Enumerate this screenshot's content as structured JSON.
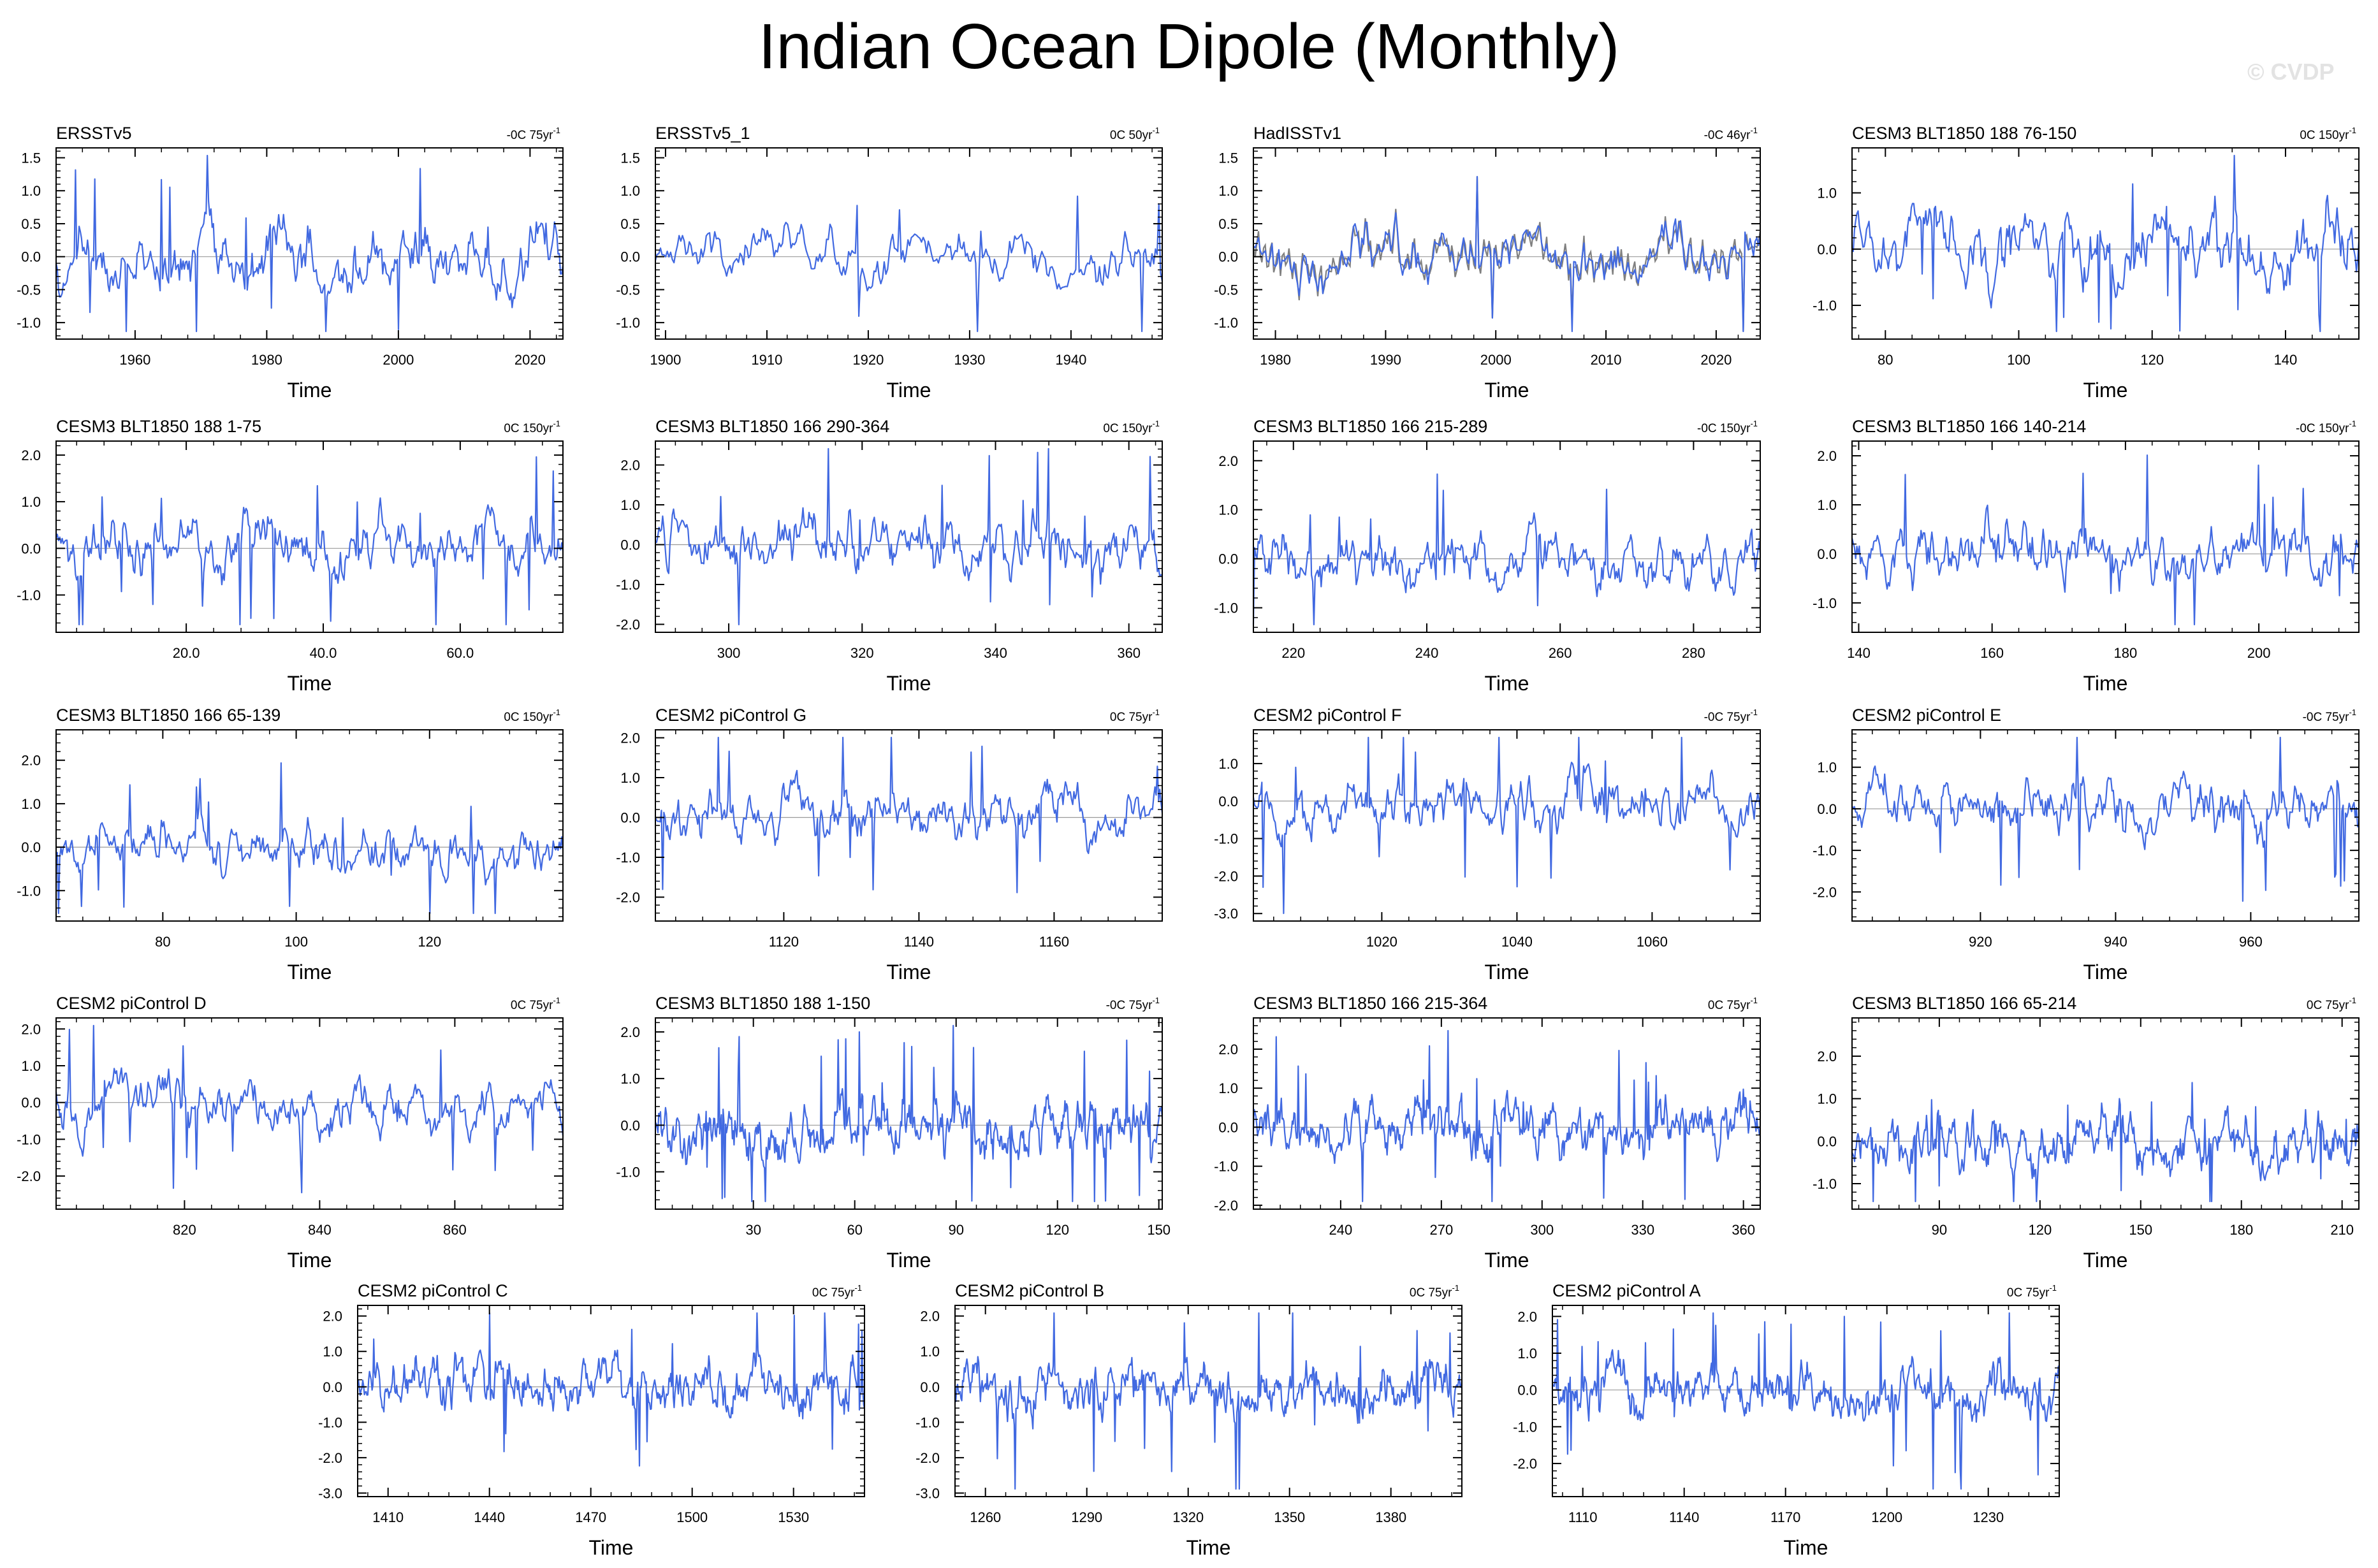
{
  "title": "Indian Ocean Dipole (Monthly)",
  "watermark": "© CVDP",
  "colors": {
    "series": "#4169e1",
    "obs_overlay": "#808080",
    "axis": "#000000",
    "zero_line": "#999999"
  },
  "chart_data": [
    {
      "type": "line",
      "title": "ERSSTv5",
      "trend": "-0C 75yr",
      "xlabel": "Time",
      "xlim": [
        1948,
        2025
      ],
      "xticks": [
        1960,
        1980,
        2000,
        2020
      ],
      "xtick_labels": [
        "1960",
        "1980",
        "2000",
        "2020"
      ],
      "ylim": [
        -1.25,
        1.65
      ],
      "yticks": [
        -1.0,
        -0.5,
        0.0,
        0.5,
        1.0,
        1.5
      ],
      "ytick_labels": [
        "-1.0",
        "-0.5",
        "0.0",
        "0.5",
        "1.0",
        "1.5"
      ],
      "seed": 1,
      "n": 420,
      "amp": 0.42,
      "overlay": false
    },
    {
      "type": "line",
      "title": "ERSSTv5_1",
      "trend": "0C 50yr",
      "xlabel": "Time",
      "xlim": [
        1899,
        1949
      ],
      "xticks": [
        1900,
        1910,
        1920,
        1930,
        1940
      ],
      "xtick_labels": [
        "1900",
        "1910",
        "1920",
        "1930",
        "1940"
      ],
      "ylim": [
        -1.25,
        1.65
      ],
      "yticks": [
        -1.0,
        -0.5,
        0.0,
        0.5,
        1.0,
        1.5
      ],
      "ytick_labels": [
        "-1.0",
        "-0.5",
        "0.0",
        "0.5",
        "1.0",
        "1.5"
      ],
      "seed": 2,
      "n": 300,
      "amp": 0.33,
      "overlay": false
    },
    {
      "type": "line",
      "title": "HadISSTv1",
      "trend": "-0C 46yr",
      "xlabel": "Time",
      "xlim": [
        1978,
        2024
      ],
      "xticks": [
        1980,
        1990,
        2000,
        2010,
        2020
      ],
      "xtick_labels": [
        "1980",
        "1990",
        "2000",
        "2010",
        "2020"
      ],
      "ylim": [
        -1.25,
        1.65
      ],
      "yticks": [
        -1.0,
        -0.5,
        0.0,
        0.5,
        1.0,
        1.5
      ],
      "ytick_labels": [
        "-1.0",
        "-0.5",
        "0.0",
        "0.5",
        "1.0",
        "1.5"
      ],
      "seed": 3,
      "n": 300,
      "amp": 0.38,
      "overlay": true
    },
    {
      "type": "line",
      "title": "CESM3 BLT1850 188 76-150",
      "trend": "0C 150yr",
      "xlabel": "Time",
      "xlim": [
        75,
        151
      ],
      "xticks": [
        80,
        100,
        120,
        140
      ],
      "xtick_labels": [
        "80",
        "100",
        "120",
        "140"
      ],
      "ylim": [
        -1.6,
        1.8
      ],
      "yticks": [
        -1.0,
        0.0,
        1.0
      ],
      "ytick_labels": [
        "-1.0",
        "0.0",
        "1.0"
      ],
      "seed": 4,
      "n": 420,
      "amp": 0.5,
      "overlay": false
    },
    {
      "type": "line",
      "title": "CESM3 BLT1850 188 1-75",
      "trend": "0C 150yr",
      "xlabel": "Time",
      "xlim": [
        1,
        75
      ],
      "xticks": [
        20,
        40,
        60
      ],
      "xtick_labels": [
        "20.0",
        "40.0",
        "60.0"
      ],
      "ylim": [
        -1.8,
        2.3
      ],
      "yticks": [
        -1.0,
        0.0,
        1.0,
        2.0
      ],
      "ytick_labels": [
        "-1.0",
        "0.0",
        "1.0",
        "2.0"
      ],
      "seed": 5,
      "n": 420,
      "amp": 0.5,
      "overlay": false
    },
    {
      "type": "line",
      "title": "CESM3 BLT1850 166 290-364",
      "trend": "0C 150yr",
      "xlabel": "Time",
      "xlim": [
        289,
        365
      ],
      "xticks": [
        300,
        320,
        340,
        360
      ],
      "xtick_labels": [
        "300",
        "320",
        "340",
        "360"
      ],
      "ylim": [
        -2.2,
        2.6
      ],
      "yticks": [
        -2.0,
        -1.0,
        0.0,
        1.0,
        2.0
      ],
      "ytick_labels": [
        "-2.0",
        "-1.0",
        "0.0",
        "1.0",
        "2.0"
      ],
      "seed": 6,
      "n": 420,
      "amp": 0.6,
      "overlay": false
    },
    {
      "type": "line",
      "title": "CESM3 BLT1850 166 215-289",
      "trend": "-0C 150yr",
      "xlabel": "Time",
      "xlim": [
        214,
        290
      ],
      "xticks": [
        220,
        240,
        260,
        280
      ],
      "xtick_labels": [
        "220",
        "240",
        "260",
        "280"
      ],
      "ylim": [
        -1.5,
        2.4
      ],
      "yticks": [
        -1.0,
        0.0,
        1.0,
        2.0
      ],
      "ytick_labels": [
        "-1.0",
        "0.0",
        "1.0",
        "2.0"
      ],
      "seed": 7,
      "n": 420,
      "amp": 0.5,
      "overlay": false
    },
    {
      "type": "line",
      "title": "CESM3 BLT1850 166 140-214",
      "trend": "-0C 150yr",
      "xlabel": "Time",
      "xlim": [
        139,
        215
      ],
      "xticks": [
        140,
        160,
        180,
        200
      ],
      "xtick_labels": [
        "140",
        "160",
        "180",
        "200"
      ],
      "ylim": [
        -1.6,
        2.3
      ],
      "yticks": [
        -1.0,
        0.0,
        1.0,
        2.0
      ],
      "ytick_labels": [
        "-1.0",
        "0.0",
        "1.0",
        "2.0"
      ],
      "seed": 8,
      "n": 420,
      "amp": 0.5,
      "overlay": false
    },
    {
      "type": "line",
      "title": "CESM3 BLT1850 166 65-139",
      "trend": "0C 150yr",
      "xlabel": "Time",
      "xlim": [
        64,
        140
      ],
      "xticks": [
        80,
        100,
        120
      ],
      "xtick_labels": [
        "80",
        "100",
        "120"
      ],
      "ylim": [
        -1.7,
        2.7
      ],
      "yticks": [
        -1.0,
        0.0,
        1.0,
        2.0
      ],
      "ytick_labels": [
        "-1.0",
        "0.0",
        "1.0",
        "2.0"
      ],
      "seed": 9,
      "n": 420,
      "amp": 0.45,
      "overlay": false
    },
    {
      "type": "line",
      "title": "CESM2 piControl G",
      "trend": "0C 75yr",
      "xlabel": "Time",
      "xlim": [
        1101,
        1176
      ],
      "xticks": [
        1120,
        1140,
        1160
      ],
      "xtick_labels": [
        "1120",
        "1140",
        "1160"
      ],
      "ylim": [
        -2.6,
        2.2
      ],
      "yticks": [
        -2.0,
        -1.0,
        0.0,
        1.0,
        2.0
      ],
      "ytick_labels": [
        "-2.0",
        "-1.0",
        "0.0",
        "1.0",
        "2.0"
      ],
      "seed": 10,
      "n": 420,
      "amp": 0.55,
      "overlay": false
    },
    {
      "type": "line",
      "title": "CESM2 piControl F",
      "trend": "-0C 75yr",
      "xlabel": "Time",
      "xlim": [
        1001,
        1076
      ],
      "xticks": [
        1020,
        1040,
        1060
      ],
      "xtick_labels": [
        "1020",
        "1040",
        "1060"
      ],
      "ylim": [
        -3.2,
        1.9
      ],
      "yticks": [
        -3.0,
        -2.0,
        -1.0,
        0.0,
        1.0
      ],
      "ytick_labels": [
        "-3.0",
        "-2.0",
        "-1.0",
        "0.0",
        "1.0"
      ],
      "seed": 11,
      "n": 420,
      "amp": 0.6,
      "overlay": false
    },
    {
      "type": "line",
      "title": "CESM2 piControl E",
      "trend": "-0C 75yr",
      "xlabel": "Time",
      "xlim": [
        901,
        976
      ],
      "xticks": [
        920,
        940,
        960
      ],
      "xtick_labels": [
        "920",
        "940",
        "960"
      ],
      "ylim": [
        -2.7,
        1.9
      ],
      "yticks": [
        -2.0,
        -1.0,
        0.0,
        1.0
      ],
      "ytick_labels": [
        "-2.0",
        "-1.0",
        "0.0",
        "1.0"
      ],
      "seed": 12,
      "n": 420,
      "amp": 0.55,
      "overlay": false
    },
    {
      "type": "line",
      "title": "CESM2 piControl D",
      "trend": "0C 75yr",
      "xlabel": "Time",
      "xlim": [
        801,
        876
      ],
      "xticks": [
        820,
        840,
        860
      ],
      "xtick_labels": [
        "820",
        "840",
        "860"
      ],
      "ylim": [
        -2.9,
        2.3
      ],
      "yticks": [
        -2.0,
        -1.0,
        0.0,
        1.0,
        2.0
      ],
      "ytick_labels": [
        "-2.0",
        "-1.0",
        "0.0",
        "1.0",
        "2.0"
      ],
      "seed": 13,
      "n": 420,
      "amp": 0.55,
      "overlay": false
    },
    {
      "type": "line",
      "title": "CESM3 BLT1850 188 1-150",
      "trend": "-0C 75yr",
      "xlabel": "Time",
      "xlim": [
        1,
        151
      ],
      "xticks": [
        30,
        60,
        90,
        120,
        150
      ],
      "xtick_labels": [
        "30",
        "60",
        "90",
        "120",
        "150"
      ],
      "ylim": [
        -1.8,
        2.3
      ],
      "yticks": [
        -1.0,
        0.0,
        1.0,
        2.0
      ],
      "ytick_labels": [
        "-1.0",
        "0.0",
        "1.0",
        "2.0"
      ],
      "seed": 14,
      "n": 600,
      "amp": 0.5,
      "overlay": false
    },
    {
      "type": "line",
      "title": "CESM3 BLT1850 166 215-364",
      "trend": "0C 75yr",
      "xlabel": "Time",
      "xlim": [
        214,
        365
      ],
      "xticks": [
        240,
        270,
        300,
        330,
        360
      ],
      "xtick_labels": [
        "240",
        "270",
        "300",
        "330",
        "360"
      ],
      "ylim": [
        -2.1,
        2.8
      ],
      "yticks": [
        -2.0,
        -1.0,
        0.0,
        1.0,
        2.0
      ],
      "ytick_labels": [
        "-2.0",
        "-1.0",
        "0.0",
        "1.0",
        "2.0"
      ],
      "seed": 15,
      "n": 600,
      "amp": 0.55,
      "overlay": false
    },
    {
      "type": "line",
      "title": "CESM3 BLT1850 166 65-214",
      "trend": "0C 75yr",
      "xlabel": "Time",
      "xlim": [
        64,
        215
      ],
      "xticks": [
        90,
        120,
        150,
        180,
        210
      ],
      "xtick_labels": [
        "90",
        "120",
        "150",
        "180",
        "210"
      ],
      "ylim": [
        -1.6,
        2.9
      ],
      "yticks": [
        -1.0,
        0.0,
        1.0,
        2.0
      ],
      "ytick_labels": [
        "-1.0",
        "0.0",
        "1.0",
        "2.0"
      ],
      "seed": 16,
      "n": 600,
      "amp": 0.5,
      "overlay": false
    },
    {
      "type": "line",
      "title": "CESM2 piControl C",
      "trend": "0C 75yr",
      "xlabel": "Time",
      "xlim": [
        1401,
        1551
      ],
      "xticks": [
        1410,
        1440,
        1470,
        1500,
        1530
      ],
      "xtick_labels": [
        "1410",
        "1440",
        "1470",
        "1500",
        "1530"
      ],
      "ylim": [
        -3.1,
        2.3
      ],
      "yticks": [
        -3.0,
        -2.0,
        -1.0,
        0.0,
        1.0,
        2.0
      ],
      "ytick_labels": [
        "-3.0",
        "-2.0",
        "-1.0",
        "0.0",
        "1.0",
        "2.0"
      ],
      "seed": 17,
      "n": 600,
      "amp": 0.6,
      "overlay": false
    },
    {
      "type": "line",
      "title": "CESM2 piControl B",
      "trend": "0C 75yr",
      "xlabel": "Time",
      "xlim": [
        1251,
        1401
      ],
      "xticks": [
        1260,
        1290,
        1320,
        1350,
        1380
      ],
      "xtick_labels": [
        "1260",
        "1290",
        "1320",
        "1350",
        "1380"
      ],
      "ylim": [
        -3.1,
        2.3
      ],
      "yticks": [
        -3.0,
        -2.0,
        -1.0,
        0.0,
        1.0,
        2.0
      ],
      "ytick_labels": [
        "-3.0",
        "-2.0",
        "-1.0",
        "0.0",
        "1.0",
        "2.0"
      ],
      "seed": 18,
      "n": 600,
      "amp": 0.6,
      "overlay": false
    },
    {
      "type": "line",
      "title": "CESM2 piControl A",
      "trend": "0C 75yr",
      "xlabel": "Time",
      "xlim": [
        1101,
        1251
      ],
      "xticks": [
        1110,
        1140,
        1170,
        1200,
        1230
      ],
      "xtick_labels": [
        "1110",
        "1140",
        "1170",
        "1200",
        "1230"
      ],
      "ylim": [
        -2.9,
        2.3
      ],
      "yticks": [
        -2.0,
        -1.0,
        0.0,
        1.0,
        2.0
      ],
      "ytick_labels": [
        "-2.0",
        "-1.0",
        "0.0",
        "1.0",
        "2.0"
      ],
      "seed": 19,
      "n": 600,
      "amp": 0.6,
      "overlay": false
    }
  ]
}
